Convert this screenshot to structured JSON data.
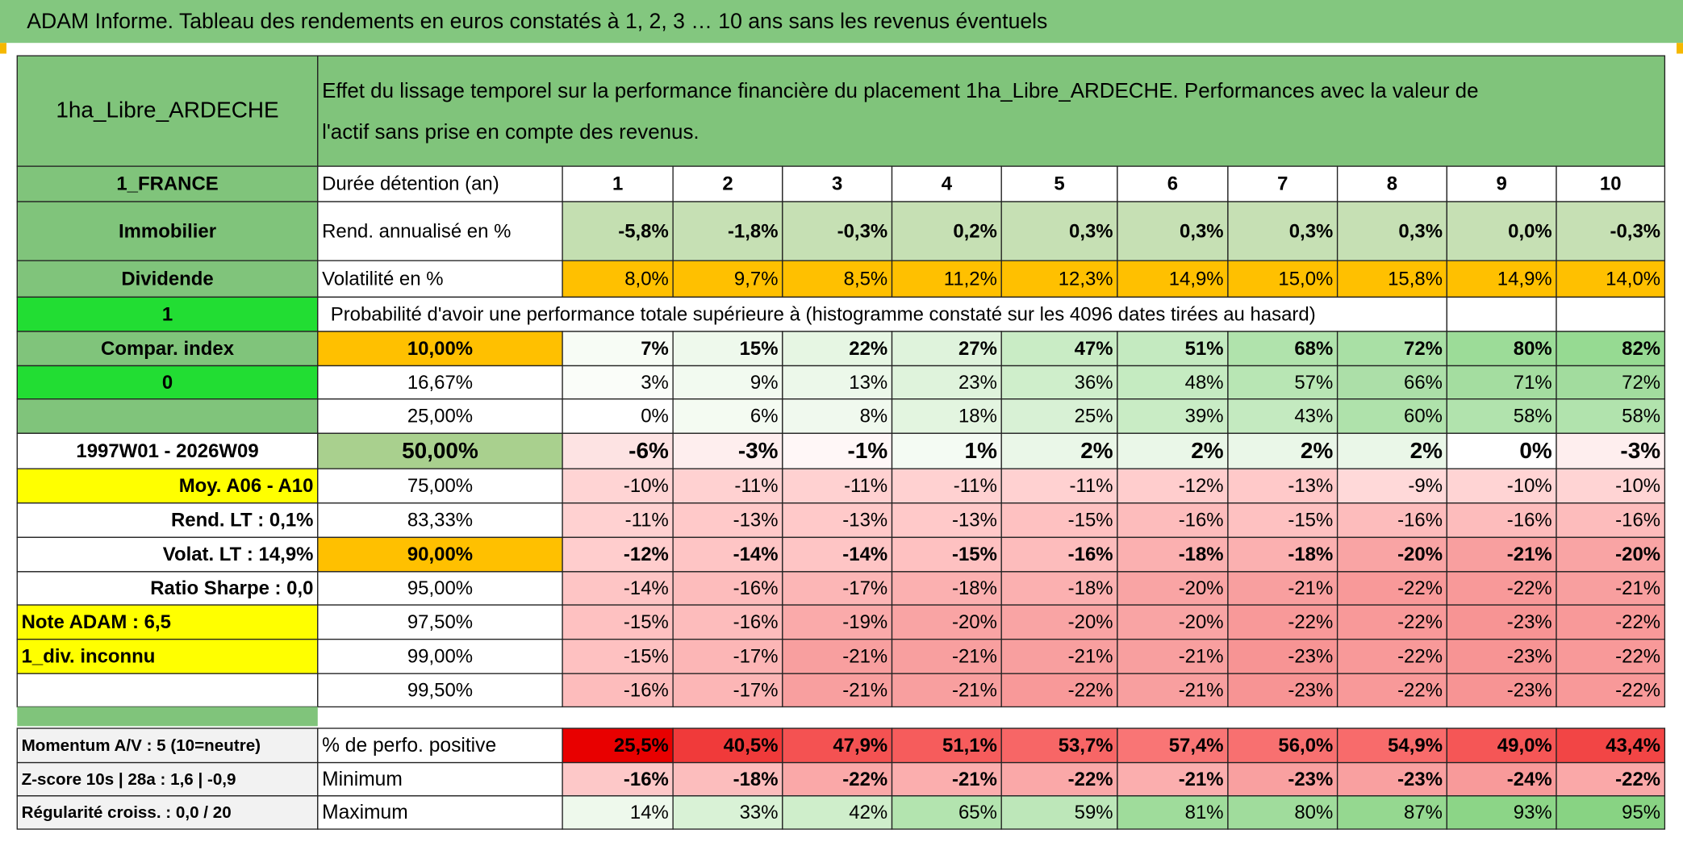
{
  "title": "ADAM Informe. Tableau des rendements en euros constatés à 1, 2, 3 … 10 ans sans les revenus éventuels",
  "header": {
    "name": "1ha_Libre_ARDECHE",
    "description": [
      "Effet du lissage temporel sur la performance financière du placement 1ha_Libre_ARDECHE. Performances avec la valeur de",
      "l'actif sans prise en compte des revenus."
    ]
  },
  "rows": [
    {
      "label": "1_FRANCE",
      "param": "Durée détention (an)",
      "cells": [
        1,
        2,
        3,
        4,
        5,
        6,
        7,
        8,
        9,
        10
      ]
    },
    {
      "label": "Immobilier",
      "param": "Rend. annualisé en %",
      "cells": [
        "-5,8%",
        "-1,8%",
        "-0,3%",
        "0,2%",
        "0,3%",
        "0,3%",
        "0,3%",
        "0,3%",
        "0,0%",
        "-0,3%"
      ],
      "fills": [
        "#c4dfb1",
        "#c6e0b4",
        "#c6e0b4",
        "#c6e0b4",
        "#c6e0b4",
        "#c6e0b4",
        "#c6e0b4",
        "#c6e0b4",
        "#c6e0b4",
        "#c6e0b4"
      ]
    },
    {
      "label": "Dividende",
      "param": "Volatilité en %",
      "cells": [
        "8,0%",
        "9,7%",
        "8,5%",
        "11,2%",
        "12,3%",
        "14,9%",
        "15,0%",
        "15,8%",
        "14,9%",
        "14,0%"
      ],
      "fills": [
        "#ffc000",
        "#ffc000",
        "#ffc000",
        "#ffc000",
        "#ffc000",
        "#ffc000",
        "#ffc000",
        "#ffc000",
        "#ffc000",
        "#ffc000"
      ]
    },
    {
      "label": "1",
      "note": "Probabilité d'avoir une performance totale supérieure à (histogramme constaté sur les 4096 dates tirées au hasard)"
    },
    {
      "label": "Compar. index",
      "param": "10,00%",
      "cells": [
        "7%",
        "15%",
        "22%",
        "27%",
        "47%",
        "51%",
        "68%",
        "72%",
        "80%",
        "82%"
      ],
      "fills": [
        "#f7fcf5",
        "#eef9ec",
        "#e6f6e3",
        "#dff3dc",
        "#c9ecc5",
        "#c4eac0",
        "#b0e3ac",
        "#a9e0a5",
        "#9cdc98",
        "#96da92"
      ]
    },
    {
      "label": "0",
      "param": "16,67%",
      "cells": [
        "3%",
        "9%",
        "13%",
        "23%",
        "36%",
        "48%",
        "57%",
        "66%",
        "71%",
        "72%"
      ],
      "fills": [
        "#fafdf9",
        "#f2faf0",
        "#ecf8ea",
        "#dff3dc",
        "#cfeecb",
        "#c5ebc1",
        "#b8e6b4",
        "#acdfa8",
        "#a4dda0",
        "#a2dc9e"
      ]
    },
    {
      "label": null,
      "param": "25,00%",
      "cells": [
        "0%",
        "6%",
        "8%",
        "18%",
        "25%",
        "39%",
        "43%",
        "60%",
        "58%",
        "58%"
      ],
      "fills": [
        "#ffffff",
        "#f4fbf2",
        "#f0f9ee",
        "#e3f5e0",
        "#d8f1d5",
        "#c9ecc5",
        "#c4eac0",
        "#afe2ab",
        "#b1e3ad",
        "#b1e3ad"
      ]
    },
    {
      "label": "1997W01 - 2026W09",
      "param": "50,00%",
      "cells": [
        "-6%",
        "-3%",
        "-1%",
        "1%",
        "2%",
        "2%",
        "2%",
        "2%",
        "0%",
        "-3%"
      ],
      "fills": [
        "#fde3e3",
        "#feeeee",
        "#fff7f7",
        "#f4fbf3",
        "#eaf7e8",
        "#eaf7e8",
        "#eaf7e8",
        "#eaf7e8",
        "#ffffff",
        "#feeeee"
      ]
    },
    {
      "label": "Moy. A06 - A10",
      "param": "75,00%",
      "cells": [
        "-10%",
        "-11%",
        "-11%",
        "-11%",
        "-11%",
        "-12%",
        "-13%",
        "-9%",
        "-10%",
        "-10%"
      ],
      "fills": [
        "#ffd4d4",
        "#ffd1d1",
        "#ffd1d1",
        "#ffd1d1",
        "#ffd1d1",
        "#ffcdcd",
        "#ffc9c9",
        "#ffd9d9",
        "#ffd4d4",
        "#ffd4d4"
      ]
    },
    {
      "label": "Rend. LT :   0,1%",
      "param": "83,33%",
      "cells": [
        "-11%",
        "-13%",
        "-13%",
        "-13%",
        "-15%",
        "-16%",
        "-15%",
        "-16%",
        "-16%",
        "-16%"
      ],
      "fills": [
        "#ffd1d1",
        "#ffc9c9",
        "#ffc9c9",
        "#ffc9c9",
        "#fec1c1",
        "#fdbcbc",
        "#fec1c1",
        "#fdbcbc",
        "#fdbcbc",
        "#fdbcbc"
      ]
    },
    {
      "label": "Volat. LT :   14,9%",
      "param": "90,00%",
      "cells": [
        "-12%",
        "-14%",
        "-14%",
        "-15%",
        "-16%",
        "-18%",
        "-18%",
        "-20%",
        "-21%",
        "-20%"
      ],
      "fills": [
        "#ffcdcd",
        "#fec5c5",
        "#fec5c5",
        "#fec1c1",
        "#fdbcbc",
        "#fbb0b0",
        "#fbb0b0",
        "#f9a4a4",
        "#f89f9f",
        "#f9a4a4"
      ]
    },
    {
      "label": "Ratio Sharpe :    0,0",
      "param": "95,00%",
      "cells": [
        "-14%",
        "-16%",
        "-17%",
        "-18%",
        "-18%",
        "-20%",
        "-21%",
        "-22%",
        "-22%",
        "-21%"
      ],
      "fills": [
        "#fec5c5",
        "#fdbcbc",
        "#fcb6b6",
        "#fbb0b0",
        "#fbb0b0",
        "#f9a4a4",
        "#f89f9f",
        "#f89999",
        "#f89999",
        "#f89f9f"
      ]
    },
    {
      "label": "Note ADAM : 6,5",
      "param": "97,50%",
      "cells": [
        "-15%",
        "-16%",
        "-19%",
        "-20%",
        "-20%",
        "-20%",
        "-22%",
        "-22%",
        "-23%",
        "-22%"
      ],
      "fills": [
        "#fec1c1",
        "#fdbcbc",
        "#faaaaa",
        "#f9a4a4",
        "#f9a4a4",
        "#f9a4a4",
        "#f89999",
        "#f89999",
        "#f79494",
        "#f89999"
      ]
    },
    {
      "label": "1_div. inconnu",
      "param": "99,00%",
      "cells": [
        "-15%",
        "-17%",
        "-21%",
        "-21%",
        "-21%",
        "-21%",
        "-23%",
        "-22%",
        "-23%",
        "-22%"
      ],
      "fills": [
        "#fec1c1",
        "#fcb6b6",
        "#f89f9f",
        "#f89f9f",
        "#f89f9f",
        "#f89f9f",
        "#f79494",
        "#f89999",
        "#f79494",
        "#f89999"
      ]
    },
    {
      "label": null,
      "param": "99,50%",
      "cells": [
        "-16%",
        "-17%",
        "-21%",
        "-21%",
        "-22%",
        "-21%",
        "-23%",
        "-22%",
        "-23%",
        "-22%"
      ],
      "fills": [
        "#fdbcbc",
        "#fcb6b6",
        "#f89f9f",
        "#f89f9f",
        "#f89999",
        "#f89f9f",
        "#f79494",
        "#f89999",
        "#f79494",
        "#f89999"
      ]
    }
  ],
  "footer": [
    {
      "label": "Momentum A/V : 5 (10=neutre)",
      "param": "% de perfo. positive",
      "cells": [
        "25,5%",
        "40,5%",
        "47,9%",
        "51,1%",
        "53,7%",
        "57,4%",
        "56,0%",
        "54,9%",
        "49,0%",
        "43,4%"
      ],
      "fills": [
        "#e80000",
        "#f03a3a",
        "#f45252",
        "#f65c5c",
        "#f76666",
        "#f97575",
        "#f87070",
        "#f86b6b",
        "#f55656",
        "#f24545"
      ]
    },
    {
      "label": "Z-score 10s | 28a : 1,6 | -0,9",
      "param": "Minimum",
      "cells": [
        "-16%",
        "-18%",
        "-22%",
        "-21%",
        "-22%",
        "-21%",
        "-23%",
        "-23%",
        "-24%",
        "-22%"
      ],
      "fills": [
        "#fdc8c8",
        "#fcbdbd",
        "#faa8a8",
        "#fbaeae",
        "#faa8a8",
        "#fbaeae",
        "#f9a0a0",
        "#f9a0a0",
        "#f89a9a",
        "#faa8a8"
      ]
    },
    {
      "label": "Régularité croiss. : 0,0 / 20",
      "param": "Maximum",
      "cells": [
        "14%",
        "33%",
        "42%",
        "65%",
        "59%",
        "81%",
        "80%",
        "87%",
        "93%",
        "95%"
      ],
      "fills": [
        "#eef9ec",
        "#d9f2d6",
        "#cfeecb",
        "#b3e4af",
        "#bde7b9",
        "#9fdc9b",
        "#a0dc9c",
        "#95d890",
        "#8cd587",
        "#88d383"
      ]
    }
  ]
}
